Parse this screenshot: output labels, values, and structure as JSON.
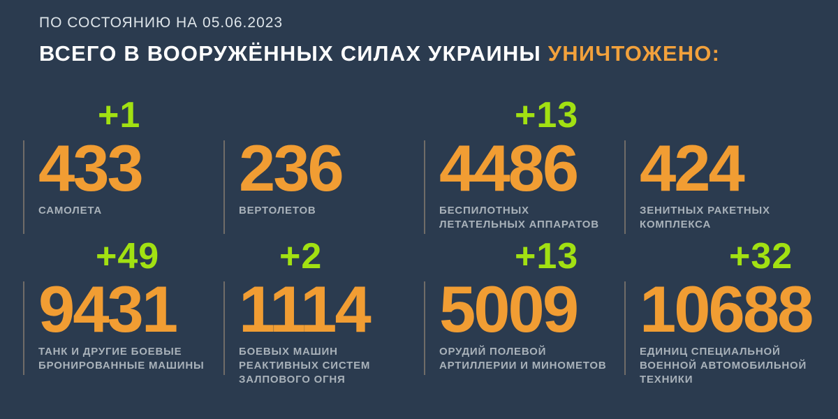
{
  "header": {
    "date_line": "ПО СОСТОЯНИЮ НА 05.06.2023",
    "title_main": "ВСЕГО В ВООРУЖЁННЫХ СИЛАХ УКРАИНЫ ",
    "title_highlight": "УНИЧТОЖЕНО:"
  },
  "colors": {
    "background": "#2b3b4f",
    "accent_orange": "#f19d33",
    "delta_green": "#a2e112",
    "label_gray": "#a9b2ba",
    "divider": "#7c766c"
  },
  "stats": [
    {
      "delta": "+1",
      "value": "433",
      "label": "САМОЛЕТА"
    },
    {
      "delta": "",
      "value": "236",
      "label": "ВЕРТОЛЕТОВ"
    },
    {
      "delta": "+13",
      "value": "4486",
      "label": "БЕСПИЛОТНЫХ\nЛЕТАТЕЛЬНЫХ АППАРАТОВ"
    },
    {
      "delta": "",
      "value": "424",
      "label": "ЗЕНИТНЫХ РАКЕТНЫХ\nКОМПЛЕКСА"
    },
    {
      "delta": "+49",
      "value": "9431",
      "label": "ТАНК И ДРУГИЕ БОЕВЫЕ\nБРОНИРОВАННЫЕ МАШИНЫ"
    },
    {
      "delta": "+2",
      "value": "1114",
      "label": "БОЕВЫХ МАШИН\nРЕАКТИВНЫХ СИСТЕМ\nЗАЛПОВОГО ОГНЯ"
    },
    {
      "delta": "+13",
      "value": "5009",
      "label": "ОРУДИЙ ПОЛЕВОЙ\nАРТИЛЛЕРИИ И МИНОМЕТОВ"
    },
    {
      "delta": "+32",
      "value": "10688",
      "label": "ЕДИНИЦ СПЕЦИАЛЬНОЙ\nВОЕННОЙ АВТОМОБИЛЬНОЙ\nТЕХНИКИ"
    }
  ],
  "chart_data": {
    "type": "table",
    "title": "ВСЕГО В ВООРУЖЁННЫХ СИЛАХ УКРАИНЫ УНИЧТОЖЕНО:",
    "as_of_date": "05.06.2023",
    "categories": [
      "самолета",
      "вертолетов",
      "беспилотных летательных аппаратов",
      "зенитных ракетных комплекса",
      "танк и другие боевые бронированные машины",
      "боевых машин реактивных систем залпового огня",
      "орудий полевой артиллерии и минометов",
      "единиц специальной военной автомобильной техники"
    ],
    "values": [
      433,
      236,
      4486,
      424,
      9431,
      1114,
      5009,
      10688
    ],
    "daily_increase": [
      1,
      null,
      13,
      null,
      49,
      2,
      13,
      32
    ],
    "layout": "2 rows x 4 columns grid of stat cards"
  }
}
